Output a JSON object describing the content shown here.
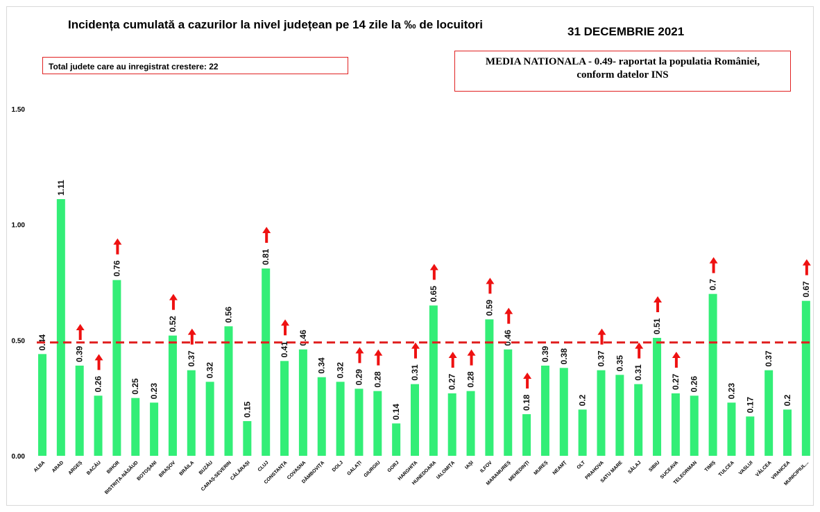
{
  "header": {
    "title": "Incidența cumulată a cazurilor la nivel județean pe 14 zile la ‰ de locuitori",
    "date": "31 DECEMBRIE 2021"
  },
  "notes": {
    "total_increase": "Total judete care au inregistrat crestere: 22",
    "media_line1": "MEDIA NATIONALA - 0.49-  raportat la populatia României,",
    "media_line2": "conform datelor INS"
  },
  "colors": {
    "bar": "#33ee77",
    "reference_line": "#e02020",
    "arrow": "#ee1111"
  },
  "chart_data": {
    "type": "bar",
    "categories": [
      "ALBA",
      "ARAD",
      "ARGEȘ",
      "BACĂU",
      "BIHOR",
      "BISTRIȚA-NĂSĂUD",
      "BOTOȘANI",
      "BRAȘOV",
      "BRĂILA",
      "BUZĂU",
      "CARAȘ-SEVERIN",
      "CĂLĂRAȘI",
      "CLUJ",
      "CONSTANȚA",
      "COVASNA",
      "DÂMBOVIȚA",
      "DOLJ",
      "GALAȚI",
      "GIURGIU",
      "GORJ",
      "HARGHITA",
      "HUNEDOARA",
      "IALOMIȚA",
      "IAȘI",
      "ILFOV",
      "MARAMUREȘ",
      "MEHEDINȚI",
      "MUREȘ",
      "NEAMȚ",
      "OLT",
      "PRAHOVA",
      "SATU MARE",
      "SĂLAJ",
      "SIBIU",
      "SUCEAVA",
      "TELEORMAN",
      "TIMIȘ",
      "TULCEA",
      "VASLUI",
      "VÂLCEA",
      "VRANCEA",
      "MUNICIPIUL..."
    ],
    "values": [
      0.44,
      1.11,
      0.39,
      0.26,
      0.76,
      0.25,
      0.23,
      0.52,
      0.37,
      0.32,
      0.56,
      0.15,
      0.81,
      0.41,
      0.46,
      0.34,
      0.32,
      0.29,
      0.28,
      0.14,
      0.31,
      0.65,
      0.27,
      0.28,
      0.59,
      0.46,
      0.18,
      0.39,
      0.38,
      0.2,
      0.37,
      0.35,
      0.31,
      0.51,
      0.27,
      0.26,
      0.7,
      0.23,
      0.17,
      0.37,
      0.2,
      0.67
    ],
    "value_labels": [
      "0.44",
      "1.11",
      "0.39",
      "0.26",
      "0.76",
      "0.25",
      "0.23",
      "0.52",
      "0.37",
      "0.32",
      "0.56",
      "0.15",
      "0.81",
      "0.41",
      "0.46",
      "0.34",
      "0.32",
      "0.29",
      "0.28",
      "0.14",
      "0.31",
      "0.65",
      "0.27",
      "0.28",
      "0.59",
      "0.46",
      "0.18",
      "0.39",
      "0.38",
      "0.2",
      "0.37",
      "0.35",
      "0.31",
      "0.51",
      "0.27",
      "0.26",
      "0.7",
      "0.23",
      "0.17",
      "0.37",
      "0.2",
      "0.67"
    ],
    "increase": [
      false,
      false,
      true,
      true,
      true,
      false,
      false,
      true,
      true,
      false,
      false,
      false,
      true,
      true,
      false,
      false,
      false,
      true,
      true,
      false,
      true,
      true,
      true,
      true,
      true,
      true,
      true,
      false,
      false,
      false,
      true,
      false,
      true,
      true,
      true,
      false,
      true,
      false,
      false,
      false,
      false,
      true
    ],
    "reference_value": 0.49,
    "ylim": [
      0,
      1.5
    ],
    "yticks": [
      "0.00",
      "0.50",
      "1.00",
      "1.50"
    ],
    "grid": false,
    "xlabel": "",
    "ylabel": ""
  }
}
